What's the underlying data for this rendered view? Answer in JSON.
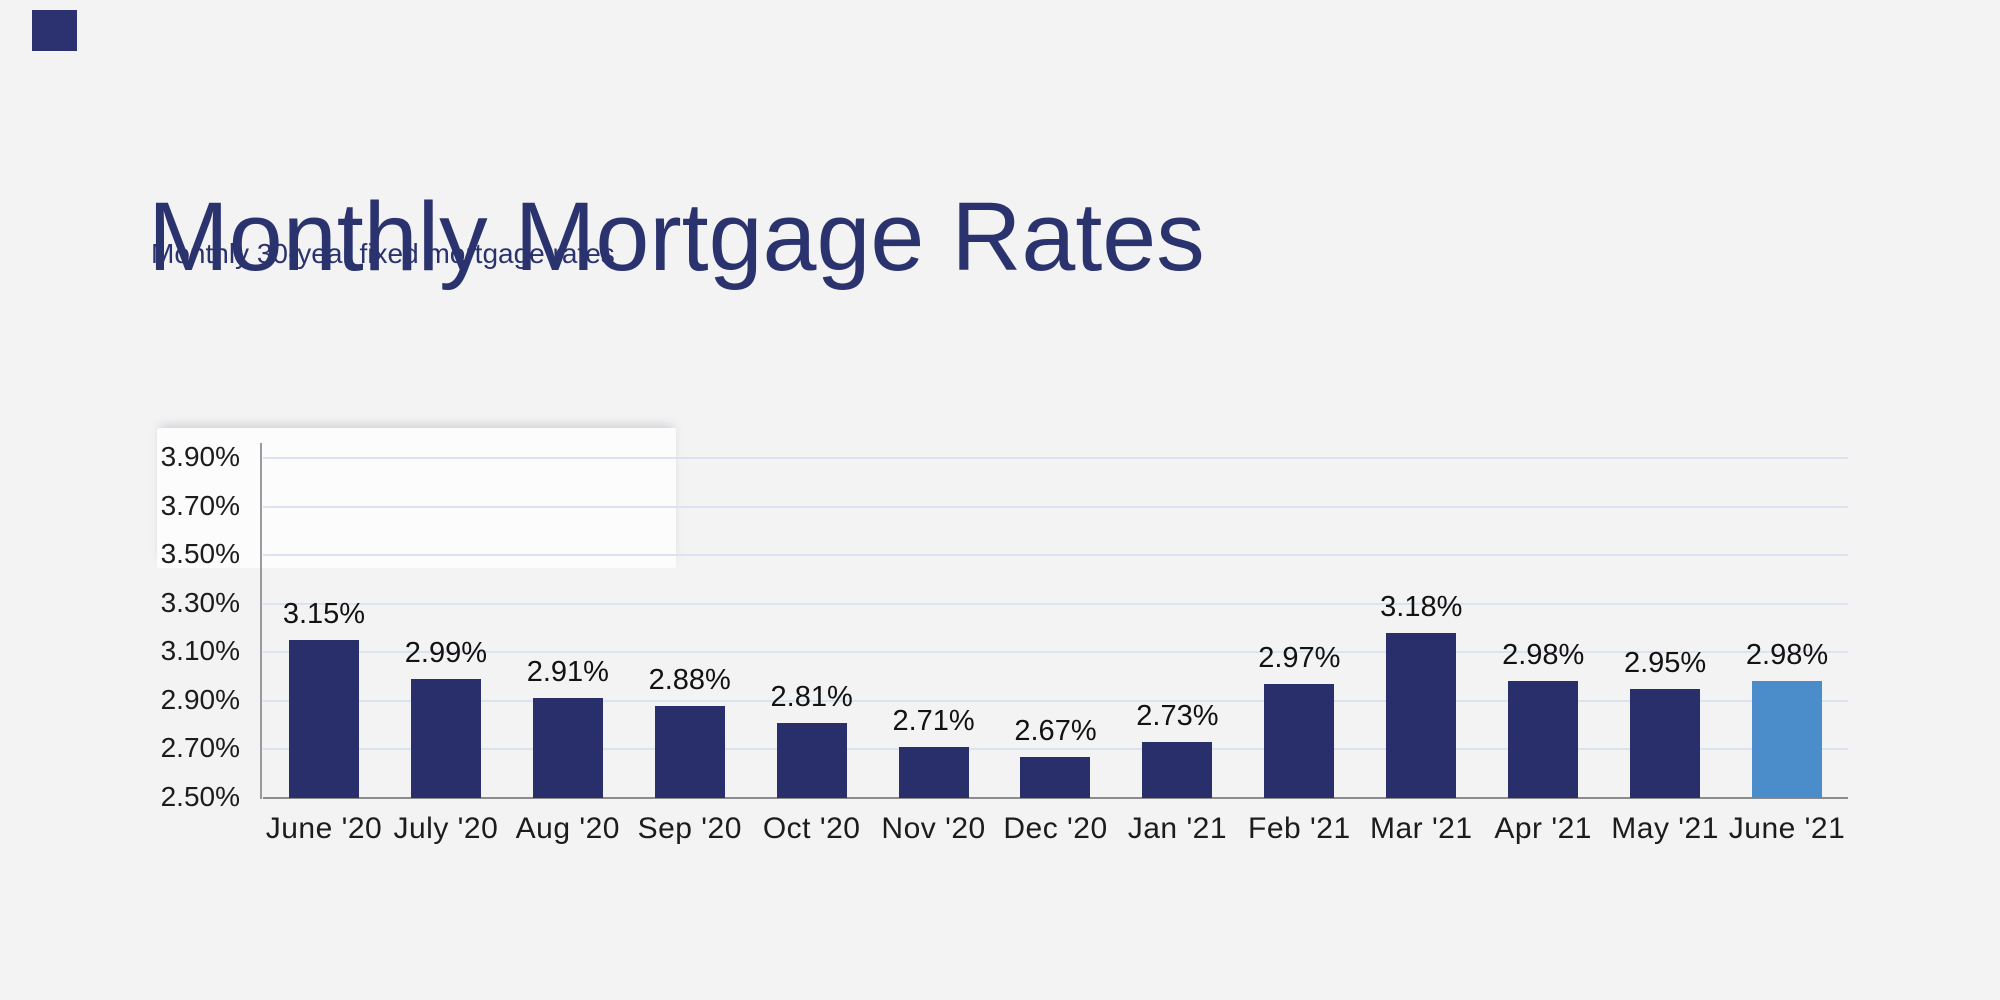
{
  "page": {
    "background_color": "#f3f3f4"
  },
  "decor": {
    "corner_square_color": "#2b326f"
  },
  "header": {
    "title": "Monthly Mortgage Rates",
    "subtitle": "Monthly 30-year fixed mortgage rates",
    "text_color": "#2b336e"
  },
  "chart_data": {
    "type": "bar",
    "title": "Monthly Mortgage Rates",
    "subtitle": "Monthly 30-year fixed mortgage rates",
    "categories": [
      "June '20",
      "July '20",
      "Aug '20",
      "Sep '20",
      "Oct '20",
      "Nov '20",
      "Dec '20",
      "Jan '21",
      "Feb '21",
      "Mar '21",
      "Apr '21",
      "May '21",
      "June '21"
    ],
    "values": [
      3.15,
      2.99,
      2.91,
      2.88,
      2.81,
      2.71,
      2.67,
      2.73,
      2.97,
      3.18,
      2.98,
      2.95,
      2.98
    ],
    "value_labels": [
      "3.15%",
      "2.99%",
      "2.91%",
      "2.88%",
      "2.81%",
      "2.71%",
      "2.67%",
      "2.73%",
      "2.97%",
      "3.18%",
      "2.98%",
      "2.95%",
      "2.98%"
    ],
    "y_tick_labels": [
      "3.90%",
      "3.70%",
      "3.50%",
      "3.30%",
      "3.10%",
      "2.90%",
      "2.70%",
      "2.50%"
    ],
    "y_tick_values": [
      3.9,
      3.7,
      3.5,
      3.3,
      3.1,
      2.9,
      2.7,
      2.5
    ],
    "ylim": [
      2.5,
      3.98
    ],
    "grid": true,
    "legend": "none",
    "xlabel": "",
    "ylabel": "",
    "bar_color": "#282f6a",
    "highlight_color": "#4b8cca",
    "highlight_index": 12,
    "gridline_color": "#dce3f0",
    "axis_color": "#9a9a9a"
  }
}
